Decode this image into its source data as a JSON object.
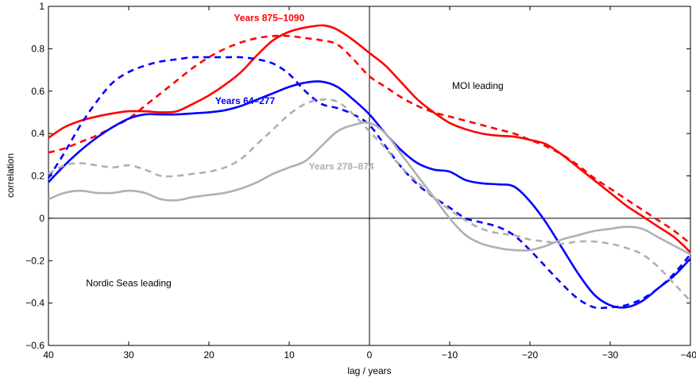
{
  "chart_data": {
    "type": "line",
    "xlabel": "lag  / years",
    "ylabel": "correlation",
    "xlim": [
      40,
      -40
    ],
    "ylim": [
      -0.6,
      1
    ],
    "x_ticks": [
      40,
      30,
      20,
      10,
      0,
      -10,
      -20,
      -30,
      -40
    ],
    "x_tick_labels": [
      "40",
      "30",
      "20",
      "10",
      "0",
      "−10",
      "−20",
      "−30",
      "−40"
    ],
    "y_ticks": [
      -0.6,
      -0.4,
      -0.2,
      0,
      0.2,
      0.4,
      0.6,
      0.8,
      1
    ],
    "y_tick_labels": [
      "−0.6",
      "−0.4",
      "−0.2",
      "0",
      "0.2",
      "0.4",
      "0.6",
      "0.8",
      "1"
    ],
    "reference_lines": {
      "horizontal_at": 0,
      "vertical_at": 0
    },
    "annotations": [
      {
        "text": "MOI leading",
        "x": -13.5,
        "y": 0.61,
        "color": "#000000"
      },
      {
        "text": "Nordic Seas leading",
        "x": 30,
        "y": -0.32,
        "color": "#000000"
      },
      {
        "text": "Years 875–1090",
        "x": 12.5,
        "y": 0.93,
        "color": "#ff0000"
      },
      {
        "text": "Years 64–277",
        "x": 15.5,
        "y": 0.54,
        "color": "#0000ff"
      },
      {
        "text": "Years 278–874",
        "x": 3.5,
        "y": 0.23,
        "color": "#b0b0b0"
      }
    ],
    "series": [
      {
        "color": "#ff0000",
        "style": "solid",
        "x": [
          40,
          38,
          36,
          34,
          32,
          30,
          28,
          26,
          24,
          22,
          20,
          18,
          16,
          14,
          12,
          10,
          8,
          6,
          5,
          4,
          2,
          0,
          -2,
          -4,
          -6,
          -8,
          -10,
          -12,
          -14,
          -16,
          -18,
          -20,
          -22,
          -24,
          -26,
          -28,
          -30,
          -32,
          -34,
          -36,
          -38,
          -40
        ],
        "y": [
          0.38,
          0.43,
          0.46,
          0.48,
          0.495,
          0.505,
          0.505,
          0.5,
          0.505,
          0.54,
          0.58,
          0.63,
          0.69,
          0.77,
          0.84,
          0.88,
          0.9,
          0.91,
          0.905,
          0.89,
          0.84,
          0.78,
          0.72,
          0.64,
          0.56,
          0.5,
          0.45,
          0.42,
          0.4,
          0.39,
          0.385,
          0.37,
          0.35,
          0.3,
          0.24,
          0.18,
          0.12,
          0.06,
          0.01,
          -0.04,
          -0.09,
          -0.16
        ]
      },
      {
        "color": "#ff0000",
        "style": "dashed",
        "x": [
          40,
          38,
          36,
          34,
          32,
          30,
          28,
          26,
          24,
          22,
          20,
          18,
          16,
          14,
          12,
          10,
          8,
          6,
          4,
          2,
          0,
          -2,
          -4,
          -6,
          -8,
          -10,
          -12,
          -14,
          -16,
          -18,
          -20,
          -22,
          -24,
          -26,
          -28,
          -30,
          -32,
          -34,
          -36,
          -38,
          -40
        ],
        "y": [
          0.31,
          0.33,
          0.36,
          0.39,
          0.43,
          0.47,
          0.53,
          0.59,
          0.65,
          0.71,
          0.76,
          0.8,
          0.83,
          0.85,
          0.86,
          0.86,
          0.85,
          0.84,
          0.82,
          0.75,
          0.67,
          0.62,
          0.57,
          0.53,
          0.5,
          0.48,
          0.46,
          0.44,
          0.42,
          0.4,
          0.37,
          0.34,
          0.3,
          0.25,
          0.19,
          0.14,
          0.09,
          0.04,
          -0.01,
          -0.06,
          -0.12
        ]
      },
      {
        "color": "#0000ff",
        "style": "solid",
        "x": [
          40,
          38,
          36,
          34,
          32,
          30,
          28,
          26,
          24,
          22,
          20,
          18,
          16,
          14,
          12,
          10,
          8,
          6,
          4,
          2,
          0,
          -2,
          -4,
          -6,
          -8,
          -10,
          -12,
          -14,
          -16,
          -18,
          -20,
          -22,
          -24,
          -26,
          -28,
          -30,
          -32,
          -34,
          -36,
          -38,
          -40
        ],
        "y": [
          0.17,
          0.25,
          0.32,
          0.38,
          0.43,
          0.47,
          0.49,
          0.49,
          0.49,
          0.495,
          0.5,
          0.51,
          0.53,
          0.56,
          0.59,
          0.62,
          0.64,
          0.645,
          0.62,
          0.56,
          0.49,
          0.4,
          0.32,
          0.26,
          0.23,
          0.22,
          0.18,
          0.165,
          0.16,
          0.15,
          0.08,
          -0.02,
          -0.14,
          -0.26,
          -0.36,
          -0.41,
          -0.42,
          -0.39,
          -0.33,
          -0.27,
          -0.19
        ]
      },
      {
        "color": "#0000ff",
        "style": "dashed",
        "x": [
          40,
          38,
          36,
          34,
          32,
          30,
          28,
          26,
          24,
          22,
          20,
          18,
          16,
          14,
          12,
          10,
          8,
          6,
          4,
          2,
          0,
          -2,
          -4,
          -6,
          -8,
          -10,
          -12,
          -14,
          -16,
          -18,
          -20,
          -22,
          -24,
          -26,
          -28,
          -30,
          -32,
          -34,
          -36,
          -38,
          -40
        ],
        "y": [
          0.19,
          0.31,
          0.44,
          0.55,
          0.64,
          0.69,
          0.72,
          0.74,
          0.75,
          0.76,
          0.76,
          0.76,
          0.76,
          0.75,
          0.73,
          0.68,
          0.6,
          0.54,
          0.52,
          0.49,
          0.44,
          0.34,
          0.24,
          0.16,
          0.1,
          0.05,
          0.0,
          -0.02,
          -0.04,
          -0.08,
          -0.15,
          -0.23,
          -0.31,
          -0.38,
          -0.42,
          -0.42,
          -0.41,
          -0.38,
          -0.33,
          -0.26,
          -0.17
        ]
      },
      {
        "color": "#b0b0b0",
        "style": "solid",
        "x": [
          40,
          38,
          36,
          34,
          32,
          30,
          28,
          26,
          24,
          22,
          20,
          18,
          16,
          14,
          12,
          10,
          8,
          6,
          4,
          2,
          0,
          -2,
          -4,
          -6,
          -8,
          -10,
          -12,
          -14,
          -16,
          -18,
          -20,
          -22,
          -24,
          -26,
          -28,
          -30,
          -32,
          -34,
          -36,
          -38,
          -40
        ],
        "y": [
          0.09,
          0.12,
          0.13,
          0.12,
          0.12,
          0.13,
          0.12,
          0.09,
          0.085,
          0.1,
          0.11,
          0.12,
          0.14,
          0.17,
          0.21,
          0.24,
          0.27,
          0.34,
          0.41,
          0.44,
          0.45,
          0.4,
          0.3,
          0.2,
          0.1,
          0.0,
          -0.08,
          -0.12,
          -0.14,
          -0.15,
          -0.15,
          -0.13,
          -0.1,
          -0.08,
          -0.06,
          -0.05,
          -0.04,
          -0.05,
          -0.09,
          -0.13,
          -0.17
        ]
      },
      {
        "color": "#b0b0b0",
        "style": "dashed",
        "x": [
          40,
          38,
          36,
          34,
          32,
          30,
          28,
          26,
          24,
          22,
          20,
          18,
          16,
          14,
          12,
          10,
          8,
          6,
          4,
          2,
          0,
          -2,
          -4,
          -6,
          -8,
          -10,
          -12,
          -14,
          -16,
          -18,
          -20,
          -22,
          -24,
          -26,
          -28,
          -30,
          -32,
          -34,
          -36,
          -38,
          -40
        ],
        "y": [
          0.21,
          0.25,
          0.26,
          0.25,
          0.24,
          0.25,
          0.23,
          0.2,
          0.2,
          0.21,
          0.22,
          0.24,
          0.28,
          0.35,
          0.42,
          0.49,
          0.54,
          0.56,
          0.55,
          0.49,
          0.41,
          0.33,
          0.24,
          0.17,
          0.1,
          0.04,
          -0.01,
          -0.05,
          -0.07,
          -0.08,
          -0.1,
          -0.11,
          -0.12,
          -0.11,
          -0.11,
          -0.12,
          -0.14,
          -0.17,
          -0.23,
          -0.31,
          -0.39
        ]
      }
    ]
  }
}
